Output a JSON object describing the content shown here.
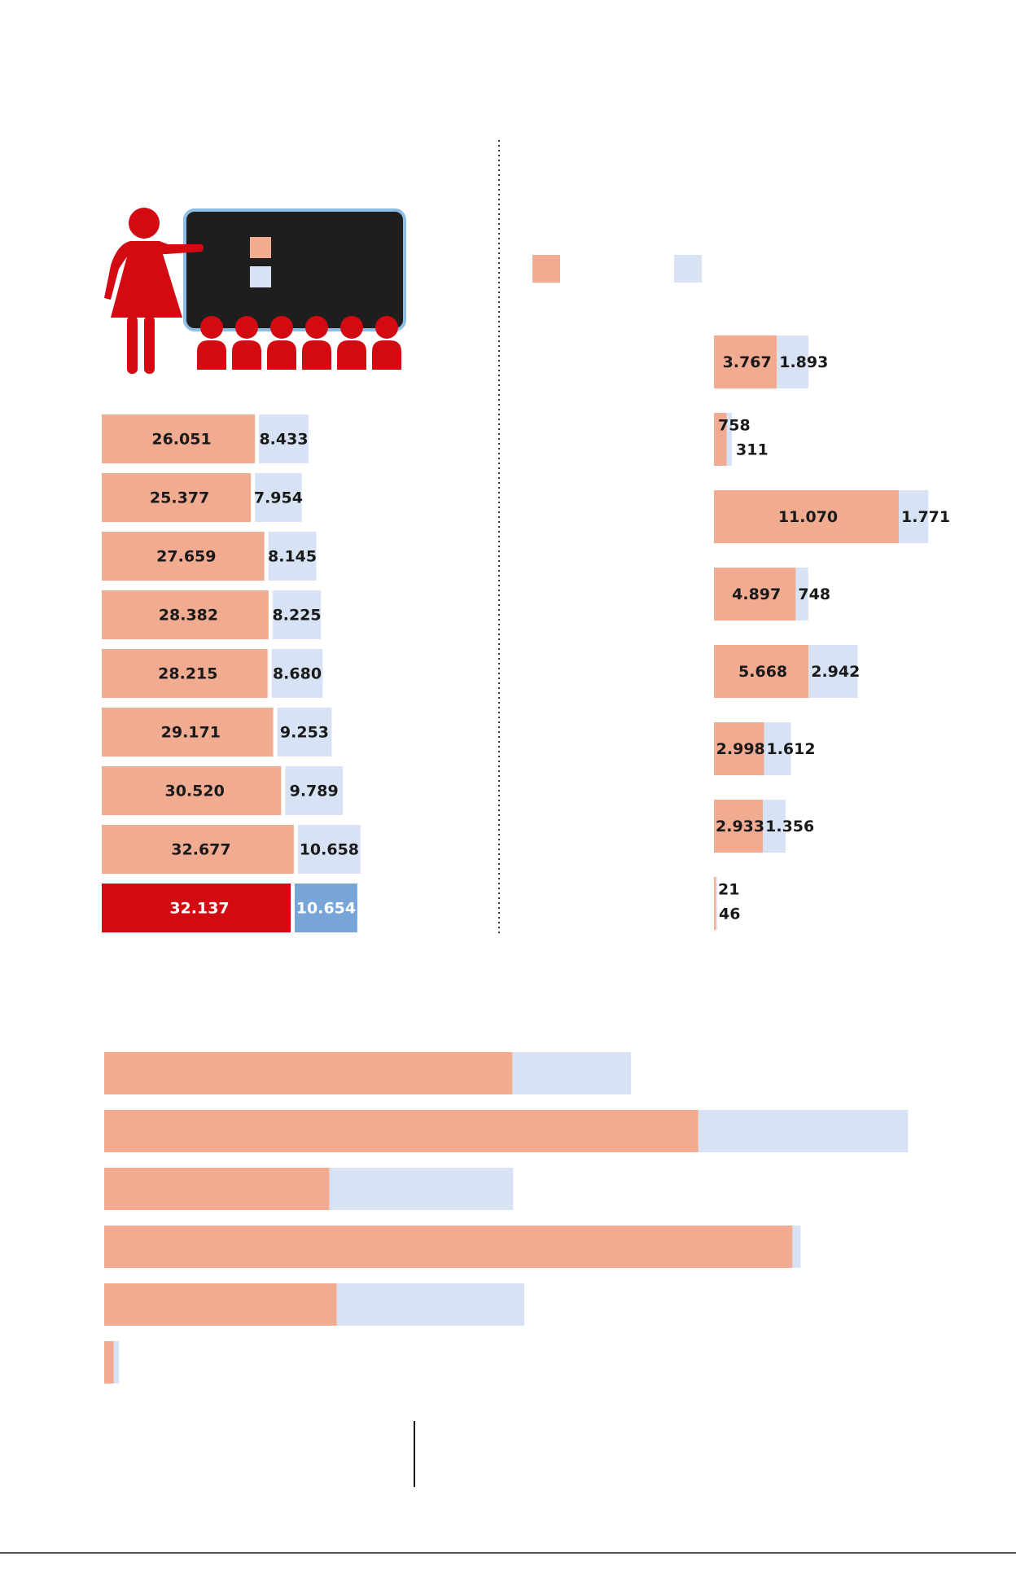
{
  "colors": {
    "salmon": "#f1ab91",
    "lightblue": "#d7e3f4",
    "red": "#d40a12",
    "blue": "#77a5d8",
    "board": "#1e1e1e",
    "board_border": "#8ebde6",
    "text": "#1a1a1a",
    "white": "#ffffff"
  },
  "icons": {
    "teacher": "teacher-icon",
    "students": "students-icon",
    "board": "blackboard-icon"
  },
  "chart_data": [
    {
      "type": "bar",
      "orientation": "horizontal",
      "stacked": false,
      "series": [
        {
          "values": [
            26051,
            25377,
            27659,
            28382,
            28215,
            29171,
            30520,
            32677,
            32137
          ],
          "labels": [
            "26.051",
            "25.377",
            "27.659",
            "28.382",
            "28.215",
            "29.171",
            "30.520",
            "32.677",
            "32.137"
          ]
        },
        {
          "values": [
            8433,
            7954,
            8145,
            8225,
            8680,
            9253,
            9789,
            10658,
            10654
          ],
          "labels": [
            "8.433",
            "7.954",
            "8.145",
            "8.225",
            "8.680",
            "9.253",
            "9.789",
            "10.658",
            "10.654"
          ]
        }
      ],
      "highlight_last": true
    },
    {
      "type": "bar",
      "orientation": "horizontal",
      "stacked": true,
      "series": [
        {
          "values": [
            3767,
            758,
            11070,
            4897,
            5668,
            2998,
            2933,
            21
          ],
          "labels": [
            "3.767",
            "758",
            "11.070",
            "4.897",
            "5.668",
            "2.998",
            "2.933",
            "21"
          ]
        },
        {
          "values": [
            1893,
            311,
            1771,
            748,
            2942,
            1612,
            1356,
            46
          ],
          "labels": [
            "1.893",
            "311",
            "1.771",
            "748",
            "2.942",
            "1.612",
            "1.356",
            "46"
          ]
        }
      ]
    },
    {
      "type": "bar",
      "orientation": "horizontal",
      "stacked": true,
      "series": [
        {
          "values": [
            55.1,
            80.2,
            30.4,
            92.9,
            31.4,
            1.3
          ]
        },
        {
          "values": [
            16.0,
            28.3,
            24.8,
            1.1,
            25.3,
            0.7
          ]
        }
      ]
    }
  ]
}
